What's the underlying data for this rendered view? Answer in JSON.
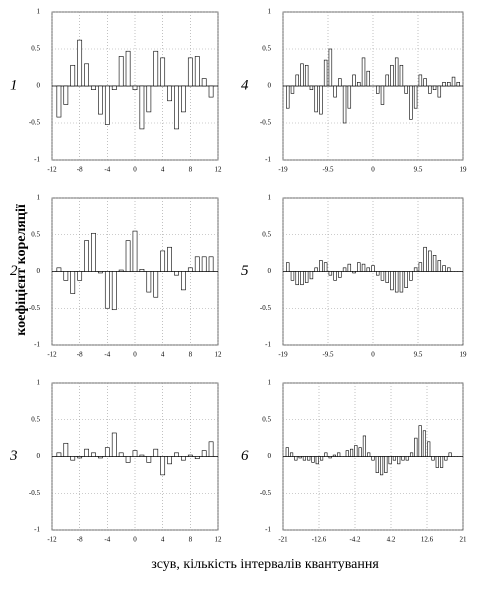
{
  "ylabel": "коефіцієнт кореляції",
  "xlabel": "зсув, кількість інтервалів квантування",
  "chart_data": [
    {
      "type": "bar",
      "label": "1",
      "grid": true,
      "color": "#ffffff",
      "xlim": [
        -12,
        12
      ],
      "xticks": [
        -12,
        -8,
        -4,
        0,
        4,
        8,
        12
      ],
      "ylim": [
        -1,
        1
      ],
      "yticks": [
        -1,
        -0.5,
        0,
        0.5,
        1
      ],
      "x": [
        -11,
        -10,
        -9,
        -8,
        -7,
        -6,
        -5,
        -4,
        -3,
        -2,
        -1,
        0,
        1,
        2,
        3,
        4,
        5,
        6,
        7,
        8,
        9,
        10,
        11
      ],
      "values": [
        -0.42,
        -0.25,
        0.28,
        0.62,
        0.3,
        -0.05,
        -0.38,
        -0.52,
        -0.05,
        0.4,
        0.47,
        -0.05,
        -0.58,
        -0.35,
        0.47,
        0.38,
        -0.2,
        -0.58,
        -0.35,
        0.38,
        0.4,
        0.1,
        -0.15
      ]
    },
    {
      "type": "bar",
      "label": "2",
      "grid": true,
      "color": "#ffffff",
      "xlim": [
        -12,
        12
      ],
      "xticks": [
        -12,
        -8,
        -4,
        0,
        4,
        8,
        12
      ],
      "ylim": [
        -1,
        1
      ],
      "yticks": [
        -1,
        -0.5,
        0,
        0.5,
        1
      ],
      "x": [
        -11,
        -10,
        -9,
        -8,
        -7,
        -6,
        -5,
        -4,
        -3,
        -2,
        -1,
        0,
        1,
        2,
        3,
        4,
        5,
        6,
        7,
        8,
        9,
        10,
        11
      ],
      "values": [
        0.05,
        -0.12,
        -0.3,
        -0.12,
        0.42,
        0.52,
        -0.02,
        -0.5,
        -0.52,
        0.02,
        0.42,
        0.55,
        0.03,
        -0.28,
        -0.35,
        0.28,
        0.33,
        -0.05,
        -0.25,
        0.05,
        0.2,
        0.2,
        0.2
      ]
    },
    {
      "type": "bar",
      "label": "3",
      "grid": true,
      "color": "#ffffff",
      "xlim": [
        -12,
        12
      ],
      "xticks": [
        -12,
        -8,
        -4,
        0,
        4,
        8,
        12
      ],
      "ylim": [
        -1,
        1
      ],
      "yticks": [
        -1,
        -0.5,
        0,
        0.5,
        1
      ],
      "x": [
        -11,
        -10,
        -9,
        -8,
        -7,
        -6,
        -5,
        -4,
        -3,
        -2,
        -1,
        0,
        1,
        2,
        3,
        4,
        5,
        6,
        7,
        8,
        9,
        10,
        11
      ],
      "values": [
        0.05,
        0.18,
        -0.05,
        -0.02,
        0.1,
        0.05,
        -0.02,
        0.12,
        0.32,
        0.05,
        -0.08,
        0.08,
        0.02,
        -0.08,
        0.1,
        -0.25,
        -0.1,
        0.05,
        -0.05,
        0.02,
        -0.03,
        0.08,
        0.2
      ]
    },
    {
      "type": "bar",
      "label": "4",
      "grid": true,
      "color": "#ffffff",
      "xlim": [
        -19,
        19
      ],
      "xticks": [
        -19,
        -9.5,
        0,
        9.5,
        19
      ],
      "ylim": [
        -1,
        1
      ],
      "yticks": [
        -1,
        -0.5,
        0,
        0.5,
        1
      ],
      "x": [
        -18,
        -17,
        -16,
        -15,
        -14,
        -13,
        -12,
        -11,
        -10,
        -9,
        -8,
        -7,
        -6,
        -5,
        -4,
        -3,
        -2,
        -1,
        0,
        1,
        2,
        3,
        4,
        5,
        6,
        7,
        8,
        9,
        10,
        11,
        12,
        13,
        14,
        15,
        16,
        17,
        18
      ],
      "values": [
        -0.3,
        -0.1,
        0.15,
        0.3,
        0.28,
        -0.05,
        -0.35,
        -0.38,
        0.35,
        0.5,
        -0.15,
        0.1,
        -0.5,
        -0.3,
        0.15,
        0.05,
        0.38,
        0.2,
        0,
        -0.1,
        -0.25,
        0.15,
        0.28,
        0.38,
        0.28,
        -0.1,
        -0.45,
        -0.3,
        0.15,
        0.1,
        -0.1,
        -0.05,
        -0.15,
        0.05,
        0.05,
        0.12,
        0.05
      ]
    },
    {
      "type": "bar",
      "label": "5",
      "grid": true,
      "color": "#ffffff",
      "xlim": [
        -19,
        19
      ],
      "xticks": [
        -19,
        -9.5,
        0,
        9.5,
        19
      ],
      "ylim": [
        -1,
        1
      ],
      "yticks": [
        -1,
        -0.5,
        0,
        0.5,
        1
      ],
      "x": [
        -18,
        -17,
        -16,
        -15,
        -14,
        -13,
        -12,
        -11,
        -10,
        -9,
        -8,
        -7,
        -6,
        -5,
        -4,
        -3,
        -2,
        -1,
        0,
        1,
        2,
        3,
        4,
        5,
        6,
        7,
        8,
        9,
        10,
        11,
        12,
        13,
        14,
        15,
        16,
        17,
        18
      ],
      "values": [
        0.12,
        -0.12,
        -0.18,
        -0.18,
        -0.15,
        -0.1,
        0.05,
        0.15,
        0.12,
        -0.05,
        -0.12,
        -0.08,
        0.05,
        0.1,
        -0.02,
        0.12,
        0.1,
        0.05,
        0.08,
        -0.05,
        -0.12,
        -0.15,
        -0.25,
        -0.28,
        -0.28,
        -0.22,
        -0.12,
        0.05,
        0.12,
        0.33,
        0.28,
        0.22,
        0.15,
        0.08,
        0.05,
        0,
        0
      ]
    },
    {
      "type": "bar",
      "label": "6",
      "grid": true,
      "color": "#ffffff",
      "xlim": [
        -21,
        21
      ],
      "xticks": [
        -21,
        -12.6,
        -4.2,
        4.2,
        12.6,
        21
      ],
      "ylim": [
        -1,
        1
      ],
      "yticks": [
        -1,
        -0.5,
        0,
        0.5,
        1
      ],
      "x": [
        -20,
        -19,
        -18,
        -17,
        -16,
        -15,
        -14,
        -13,
        -12,
        -11,
        -10,
        -9,
        -8,
        -7,
        -6,
        -5,
        -4,
        -3,
        -2,
        -1,
        0,
        1,
        2,
        3,
        4,
        5,
        6,
        7,
        8,
        9,
        10,
        11,
        12,
        13,
        14,
        15,
        16,
        17,
        18,
        19,
        20
      ],
      "values": [
        0.12,
        0.05,
        -0.05,
        -0.02,
        -0.05,
        -0.05,
        -0.08,
        -0.1,
        -0.05,
        0.05,
        -0.02,
        0.02,
        0.05,
        0,
        0.08,
        0.1,
        0.15,
        0.12,
        0.28,
        0.05,
        -0.05,
        -0.22,
        -0.25,
        -0.22,
        -0.1,
        -0.05,
        -0.1,
        -0.05,
        -0.05,
        0.05,
        0.25,
        0.42,
        0.35,
        0.2,
        -0.05,
        -0.15,
        -0.15,
        -0.05,
        0.05,
        0,
        0
      ]
    }
  ]
}
